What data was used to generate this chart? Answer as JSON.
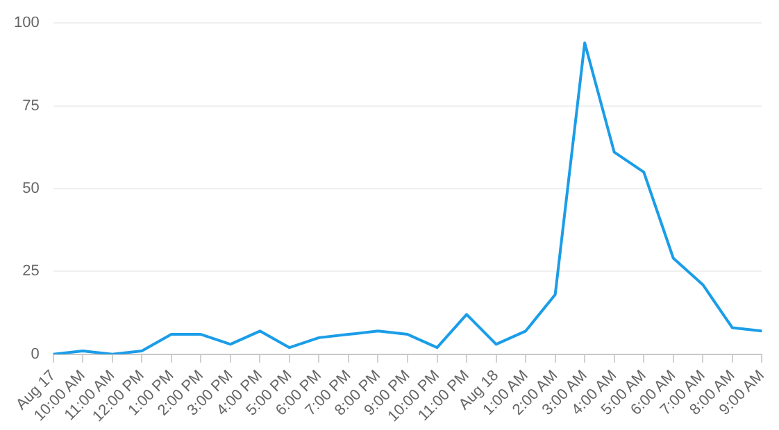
{
  "chart_data": {
    "type": "line",
    "categories": [
      "Aug 17",
      "10:00 AM",
      "11:00 AM",
      "12:00 PM",
      "1:00 PM",
      "2:00 PM",
      "3:00 PM",
      "4:00 PM",
      "5:00 PM",
      "6:00 PM",
      "7:00 PM",
      "8:00 PM",
      "9:00 PM",
      "10:00 PM",
      "11:00 PM",
      "Aug 18",
      "1:00 AM",
      "2:00 AM",
      "3:00 AM",
      "4:00 AM",
      "5:00 AM",
      "6:00 AM",
      "7:00 AM",
      "8:00 AM",
      "9:00 AM"
    ],
    "series": [
      {
        "color": "#1b9de8",
        "values": [
          0,
          1,
          0,
          1,
          6,
          6,
          3,
          7,
          2,
          5,
          6,
          7,
          6,
          2,
          12,
          3,
          7,
          18,
          94,
          61,
          55,
          29,
          21,
          8,
          7
        ]
      }
    ],
    "ylim": [
      0,
      100
    ],
    "yticks": [
      0,
      25,
      50,
      75,
      100
    ],
    "grid": "y",
    "legend": false,
    "marker": "none",
    "line_style": "solid"
  }
}
